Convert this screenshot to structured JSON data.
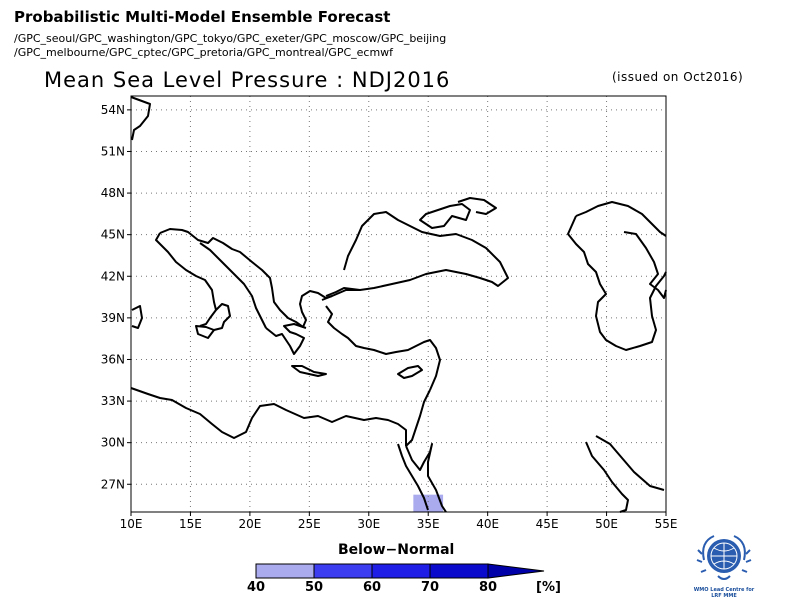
{
  "header": {
    "title": "Probabilistic Multi-Model Ensemble Forecast",
    "centres_line1": "/GPC_seoul/GPC_washington/GPC_tokyo/GPC_exeter/GPC_moscow/GPC_beijing",
    "centres_line2": "/GPC_melbourne/GPC_cptec/GPC_pretoria/GPC_montreal/GPC_ecmwf"
  },
  "map": {
    "title": "Mean Sea Level Pressure : NDJ2016",
    "issued": "(issued on Oct2016)",
    "lon_range": [
      10,
      55
    ],
    "lat_range": [
      25,
      55
    ],
    "lon_ticks": [
      "10E",
      "15E",
      "20E",
      "25E",
      "30E",
      "35E",
      "40E",
      "45E",
      "50E",
      "55E"
    ],
    "lat_ticks": [
      "27N",
      "30N",
      "33N",
      "36N",
      "39N",
      "42N",
      "45N",
      "48N",
      "51N",
      "54N"
    ],
    "grid": true,
    "shaded_cells": [
      {
        "lon_min": 33.75,
        "lon_max": 36.25,
        "lat_min": 25.0,
        "lat_max": 26.25,
        "category": "Below-Normal",
        "probability_bin": "40-50"
      }
    ],
    "coastline_color": "#000000",
    "grid_color": "#777777"
  },
  "legend": {
    "title": "Below−Normal",
    "labels": [
      "40",
      "50",
      "60",
      "70",
      "80"
    ],
    "unit": "[%]",
    "colors": [
      "#aaaaee",
      "#3c3cf0",
      "#1e1ee6",
      "#0a0acc",
      "#0000a8"
    ],
    "arrow_color": "#000078"
  },
  "logo": {
    "icon": "wmo-globe-icon",
    "text_line1": "WMO Lead Centre for",
    "text_line2": "LRF MME"
  }
}
